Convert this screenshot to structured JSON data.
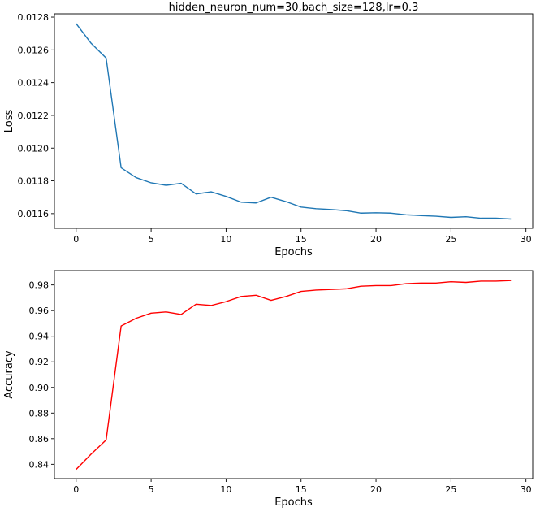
{
  "chart_data": [
    {
      "type": "line",
      "title": "hidden_neuron_num=30,bach_size=128,lr=0.3",
      "xlabel": "Epochs",
      "ylabel": "Loss",
      "xlim": [
        -1.45,
        30.45
      ],
      "ylim": [
        0.01151,
        0.01282
      ],
      "xticks": [
        0,
        5,
        10,
        15,
        20,
        25,
        30
      ],
      "yticks": [
        0.0116,
        0.0118,
        0.012,
        0.0122,
        0.0124,
        0.0126,
        0.0128
      ],
      "ytick_labels": [
        "0.0116",
        "0.0118",
        "0.0120",
        "0.0122",
        "0.0124",
        "0.0126",
        "0.0128"
      ],
      "grid": false,
      "series": [
        {
          "color": "#1f77b4",
          "x": [
            0,
            1,
            2,
            3,
            4,
            5,
            6,
            7,
            8,
            9,
            10,
            11,
            12,
            13,
            14,
            15,
            16,
            17,
            18,
            19,
            20,
            21,
            22,
            23,
            24,
            25,
            26,
            27,
            28,
            29
          ],
          "y": [
            0.01276,
            0.01264,
            0.01255,
            0.01188,
            0.01182,
            0.011788,
            0.011773,
            0.011785,
            0.01172,
            0.011733,
            0.011705,
            0.01167,
            0.011665,
            0.0117,
            0.011673,
            0.01164,
            0.01163,
            0.011625,
            0.011618,
            0.011603,
            0.011605,
            0.011603,
            0.011593,
            0.011588,
            0.011584,
            0.011577,
            0.011581,
            0.011572,
            0.011572,
            0.011567
          ]
        }
      ]
    },
    {
      "type": "line",
      "title": "",
      "xlabel": "Epochs",
      "ylabel": "Accuracy",
      "xlim": [
        -1.45,
        30.45
      ],
      "ylim": [
        0.8288,
        0.9912
      ],
      "xticks": [
        0,
        5,
        10,
        15,
        20,
        25,
        30
      ],
      "yticks": [
        0.84,
        0.86,
        0.88,
        0.9,
        0.92,
        0.94,
        0.96,
        0.98
      ],
      "ytick_labels": [
        "0.84",
        "0.86",
        "0.88",
        "0.90",
        "0.92",
        "0.94",
        "0.96",
        "0.98"
      ],
      "grid": false,
      "series": [
        {
          "color": "#ff0000",
          "x": [
            0,
            1,
            2,
            3,
            4,
            5,
            6,
            7,
            8,
            9,
            10,
            11,
            12,
            13,
            14,
            15,
            16,
            17,
            18,
            19,
            20,
            21,
            22,
            23,
            24,
            25,
            26,
            27,
            28,
            29
          ],
          "y": [
            0.836,
            0.848,
            0.859,
            0.948,
            0.954,
            0.958,
            0.959,
            0.957,
            0.965,
            0.964,
            0.967,
            0.971,
            0.972,
            0.968,
            0.971,
            0.975,
            0.976,
            0.9765,
            0.977,
            0.979,
            0.9795,
            0.9795,
            0.981,
            0.9815,
            0.9815,
            0.9825,
            0.982,
            0.983,
            0.983,
            0.9835
          ]
        }
      ]
    }
  ]
}
